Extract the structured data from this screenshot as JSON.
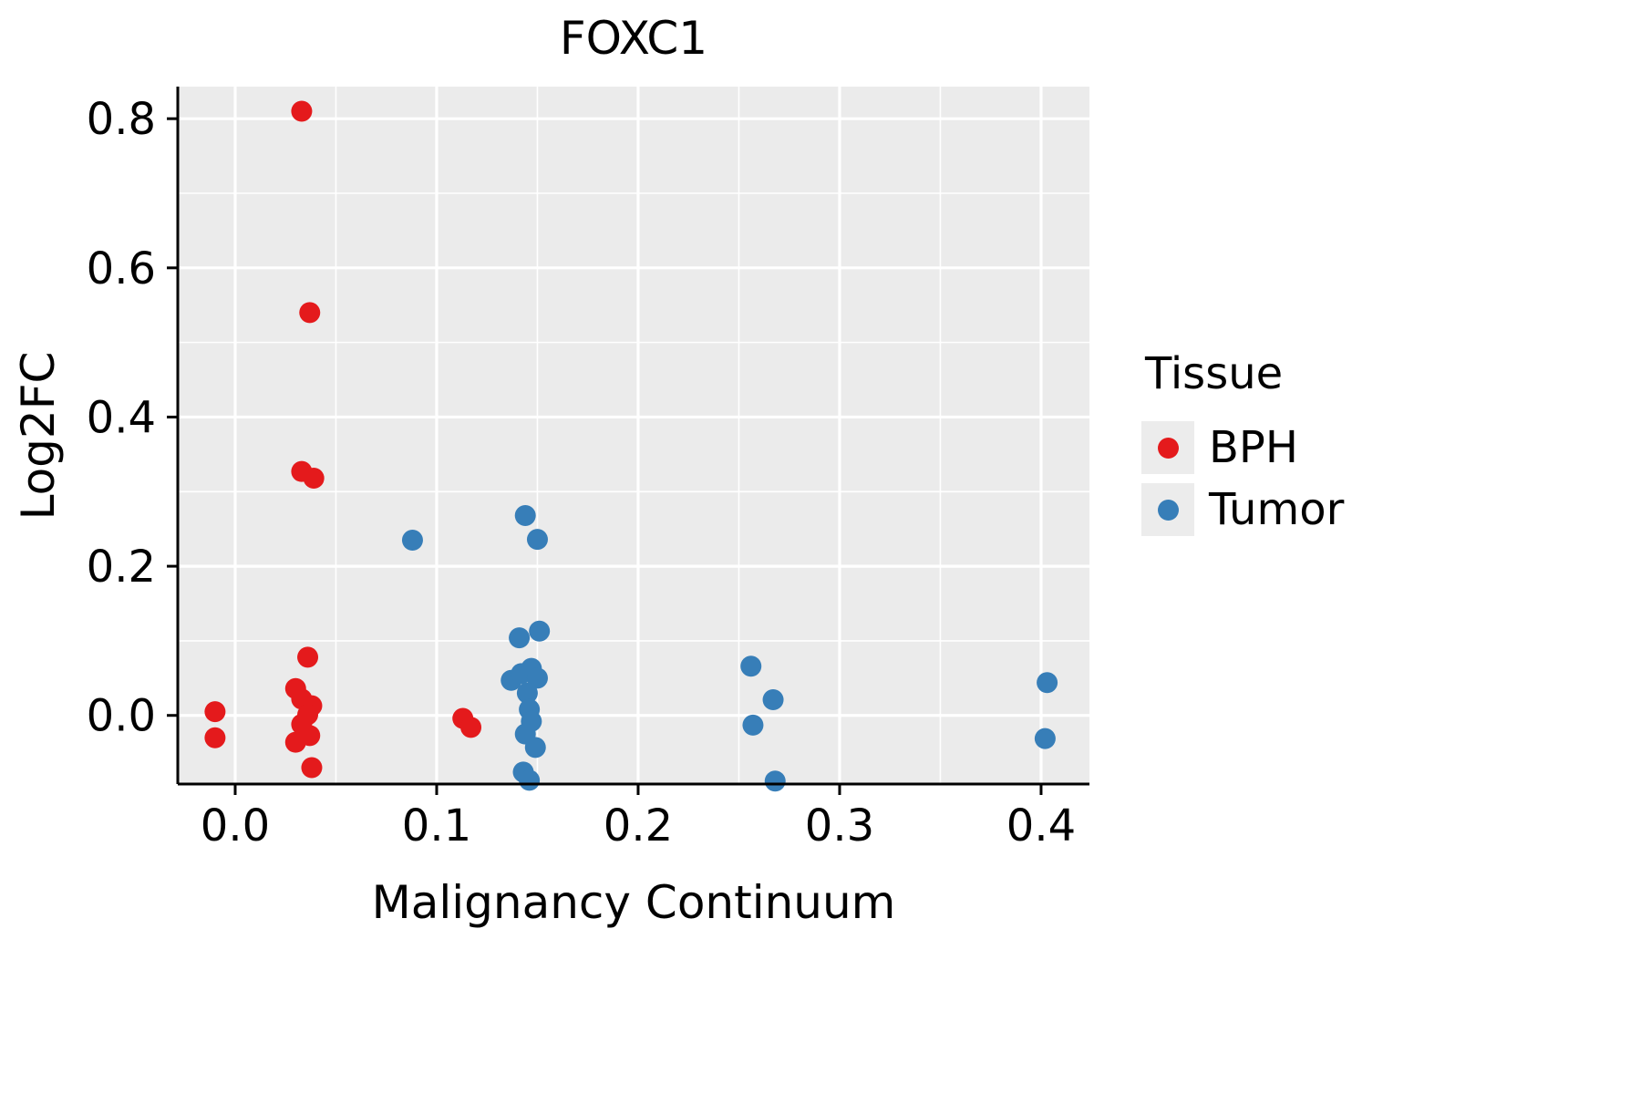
{
  "chart_data": {
    "type": "scatter",
    "title": "FOXC1",
    "xlabel": "Malignancy Continuum",
    "ylabel": "Log2FC",
    "xlim": [
      -0.0285,
      0.424
    ],
    "ylim": [
      -0.092,
      0.843
    ],
    "xticks": [
      0.0,
      0.1,
      0.2,
      0.3,
      0.4
    ],
    "yticks": [
      0.0,
      0.2,
      0.4,
      0.6,
      0.8
    ],
    "xminor": [
      0.05,
      0.15,
      0.25,
      0.35
    ],
    "yminor": [
      0.1,
      0.3,
      0.5,
      0.7
    ],
    "grid": true,
    "panel_background": "#EBEBEB",
    "grid_color": "#FFFFFF",
    "axis_color": "#000000",
    "legend": {
      "position": "right",
      "title": "Tissue"
    },
    "series": [
      {
        "name": "BPH",
        "color": "#E41A1C",
        "points": [
          [
            -0.01,
            0.005
          ],
          [
            -0.01,
            -0.03
          ],
          [
            0.033,
            0.81
          ],
          [
            0.037,
            0.54
          ],
          [
            0.033,
            0.327
          ],
          [
            0.039,
            0.318
          ],
          [
            0.036,
            0.078
          ],
          [
            0.03,
            0.036
          ],
          [
            0.033,
            0.022
          ],
          [
            0.038,
            0.013
          ],
          [
            0.036,
            0.001
          ],
          [
            0.033,
            -0.012
          ],
          [
            0.037,
            -0.027
          ],
          [
            0.03,
            -0.036
          ],
          [
            0.038,
            -0.07
          ],
          [
            0.113,
            -0.004
          ],
          [
            0.117,
            -0.016
          ]
        ]
      },
      {
        "name": "Tumor",
        "color": "#377EB8",
        "points": [
          [
            0.088,
            0.235
          ],
          [
            0.144,
            0.268
          ],
          [
            0.15,
            0.236
          ],
          [
            0.141,
            0.104
          ],
          [
            0.151,
            0.113
          ],
          [
            0.137,
            0.047
          ],
          [
            0.142,
            0.056
          ],
          [
            0.147,
            0.063
          ],
          [
            0.15,
            0.05
          ],
          [
            0.145,
            0.03
          ],
          [
            0.146,
            0.008
          ],
          [
            0.147,
            -0.008
          ],
          [
            0.144,
            -0.025
          ],
          [
            0.149,
            -0.043
          ],
          [
            0.143,
            -0.076
          ],
          [
            0.146,
            -0.087
          ],
          [
            0.256,
            0.066
          ],
          [
            0.267,
            0.021
          ],
          [
            0.257,
            -0.013
          ],
          [
            0.268,
            -0.088
          ],
          [
            0.403,
            0.044
          ],
          [
            0.402,
            -0.031
          ]
        ]
      }
    ]
  }
}
